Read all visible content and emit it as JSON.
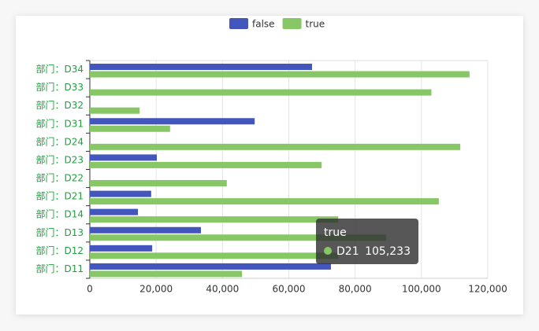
{
  "chart_data": {
    "type": "hbar",
    "categories": [
      "部门：D11",
      "部门：D12",
      "部门：D13",
      "部门：D14",
      "部门：D21",
      "部门：D22",
      "部门：D23",
      "部门：D24",
      "部门：D31",
      "部门：D32",
      "部门：D33",
      "部门：D34"
    ],
    "series": [
      {
        "name": "false",
        "color": "#4256bd",
        "values": [
          72700,
          18800,
          33500,
          14500,
          18500,
          null,
          20200,
          null,
          49700,
          null,
          null,
          67000
        ]
      },
      {
        "name": "true",
        "color": "#88c766",
        "values": [
          45900,
          75000,
          89400,
          74900,
          105233,
          41300,
          69900,
          111700,
          24200,
          15000,
          103000,
          114500
        ]
      }
    ],
    "xlim": [
      0,
      120000
    ],
    "xticks": [
      0,
      {
        "value": 20000,
        "label": "20,000"
      },
      {
        "value": 40000,
        "label": "40,000"
      },
      {
        "value": 60000,
        "label": "60,000"
      },
      {
        "value": 80000,
        "label": "80,000"
      },
      {
        "value": 100000,
        "label": "100,000"
      },
      {
        "value": 120000,
        "label": "120,000"
      }
    ],
    "grid": true,
    "legend": "top",
    "tooltip": {
      "title": "true",
      "label": "D21",
      "value": 105233,
      "value_label": "105,233",
      "color": "#88c766"
    }
  }
}
